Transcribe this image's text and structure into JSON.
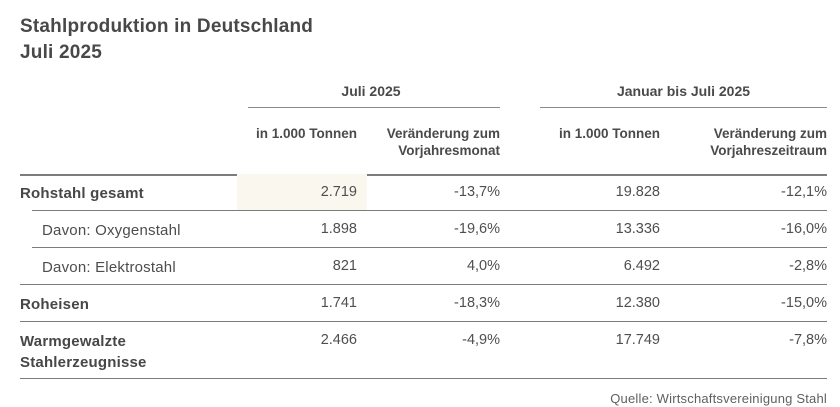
{
  "title": {
    "line1": "Stahlproduktion in Deutschland",
    "line2": "Juli 2025"
  },
  "chart_data": {
    "type": "table",
    "title": "Stahlproduktion in Deutschland",
    "subtitle": "Juli 2025",
    "column_groups": [
      {
        "label": "Juli 2025",
        "span": 2
      },
      {
        "label": "Januar bis Juli 2025",
        "span": 2
      }
    ],
    "columns": [
      "in 1.000 Tonnen",
      "Veränderung zum Vorjahresmonat",
      "in 1.000 Tonnen",
      "Veränderung zum Vorjahreszeitraum"
    ],
    "rows": [
      {
        "label": "Rohstahl gesamt",
        "emphasis": true,
        "indent": false,
        "highlighted_cell": "juli_tonnen",
        "values": [
          "2.719",
          "-13,7%",
          "19.828",
          "-12,1%"
        ]
      },
      {
        "label": "Davon: Oxygenstahl",
        "emphasis": false,
        "indent": true,
        "highlighted_cell": null,
        "values": [
          "1.898",
          "-19,6%",
          "13.336",
          "-16,0%"
        ]
      },
      {
        "label": "Davon: Elektrostahl",
        "emphasis": false,
        "indent": true,
        "highlighted_cell": null,
        "values": [
          "821",
          "4,0%",
          "6.492",
          "-2,8%"
        ]
      },
      {
        "label": "Roheisen",
        "emphasis": true,
        "indent": false,
        "highlighted_cell": null,
        "values": [
          "1.741",
          "-18,3%",
          "12.380",
          "-15,0%"
        ]
      },
      {
        "label": "Warmgewalzte Stahlerzeugnisse",
        "emphasis": true,
        "indent": false,
        "highlighted_cell": null,
        "values": [
          "2.466",
          "-4,9%",
          "17.749",
          "-7,8%"
        ]
      }
    ],
    "source": "Quelle: Wirtschaftsvereinigung Stahl"
  },
  "colors": {
    "background": "#ffffff",
    "text": "#4a4a4a",
    "rule": "#7c7c7c",
    "highlight": "#faf8ee"
  }
}
